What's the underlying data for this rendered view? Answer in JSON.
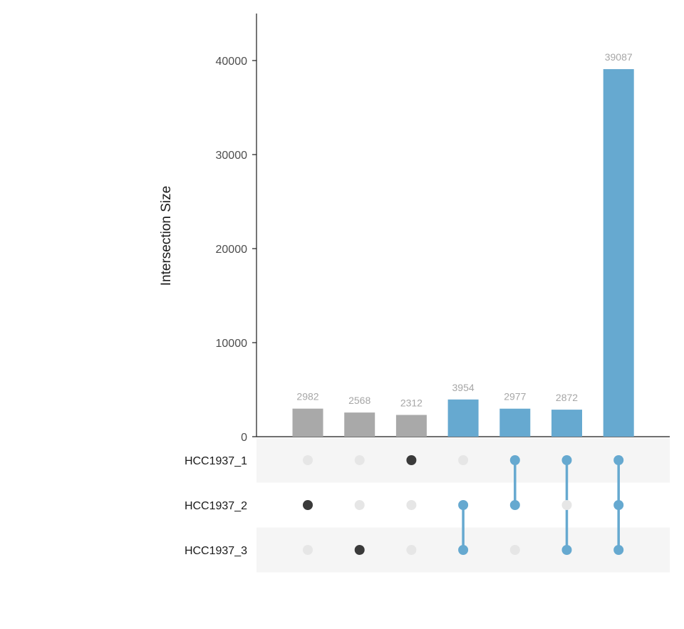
{
  "chart_data": {
    "type": "bar",
    "subtype": "upset",
    "ylabel": "Intersection Size",
    "ylim": [
      0,
      45000
    ],
    "yticks": [
      0,
      10000,
      20000,
      30000,
      40000
    ],
    "sets": [
      "HCC1937_1",
      "HCC1937_2",
      "HCC1937_3"
    ],
    "intersections": [
      {
        "members": [
          "HCC1937_2"
        ],
        "value": 2982,
        "highlighted": false
      },
      {
        "members": [
          "HCC1937_3"
        ],
        "value": 2568,
        "highlighted": false
      },
      {
        "members": [
          "HCC1937_1"
        ],
        "value": 2312,
        "highlighted": false
      },
      {
        "members": [
          "HCC1937_2",
          "HCC1937_3"
        ],
        "value": 3954,
        "highlighted": true
      },
      {
        "members": [
          "HCC1937_1",
          "HCC1937_2"
        ],
        "value": 2977,
        "highlighted": true
      },
      {
        "members": [
          "HCC1937_1",
          "HCC1937_3"
        ],
        "value": 2872,
        "highlighted": true
      },
      {
        "members": [
          "HCC1937_1",
          "HCC1937_2",
          "HCC1937_3"
        ],
        "value": 39087,
        "highlighted": true
      }
    ],
    "grid": false,
    "colors": {
      "highlight": "#66a9d0",
      "default_bar": "#a9a9a9",
      "active_dot": "#3a3a3a",
      "inactive_dot": "#e6e6e6",
      "stripe": "#f5f5f5",
      "label": "#a6a6a6"
    }
  }
}
